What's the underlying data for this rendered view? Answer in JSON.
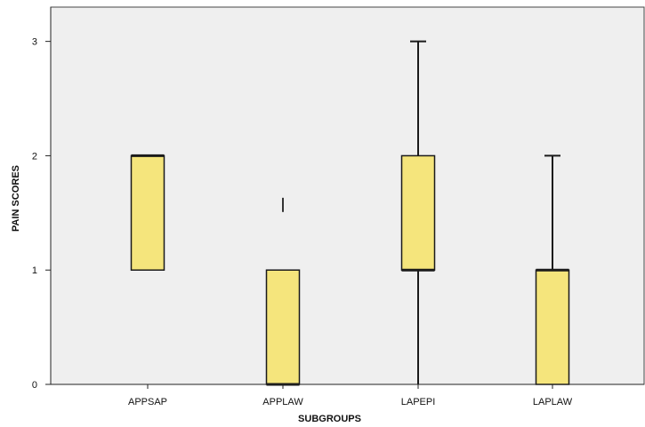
{
  "chart_data": {
    "type": "boxplot",
    "title": "",
    "xlabel": "SUBGROUPS",
    "ylabel": "PAIN SCORES",
    "ylim": [
      0,
      3.3
    ],
    "y_ticks": [
      "0",
      "1",
      "2",
      "3"
    ],
    "categories": [
      "APPSAP",
      "APPLAW",
      "LAPEPI",
      "LAPLAW"
    ],
    "boxes": [
      {
        "category": "APPSAP",
        "min": 1,
        "q1": 1,
        "median": 2,
        "q3": 2,
        "max": 2,
        "outliers": []
      },
      {
        "category": "APPLAW",
        "min": 0,
        "q1": 0,
        "median": 0,
        "q3": 1,
        "max": 1,
        "outliers": [
          1.57
        ]
      },
      {
        "category": "LAPEPI",
        "min": 0,
        "q1": 1,
        "median": 1,
        "q3": 2,
        "max": 3,
        "outliers": []
      },
      {
        "category": "LAPLAW",
        "min": 0,
        "q1": 0,
        "median": 1,
        "q3": 1,
        "max": 2,
        "outliers": []
      }
    ],
    "colors": {
      "plot_bg": "#efefef",
      "box_fill": "#f5e57c",
      "line": "#1a1a1a"
    },
    "grid": false,
    "legend": "none"
  }
}
